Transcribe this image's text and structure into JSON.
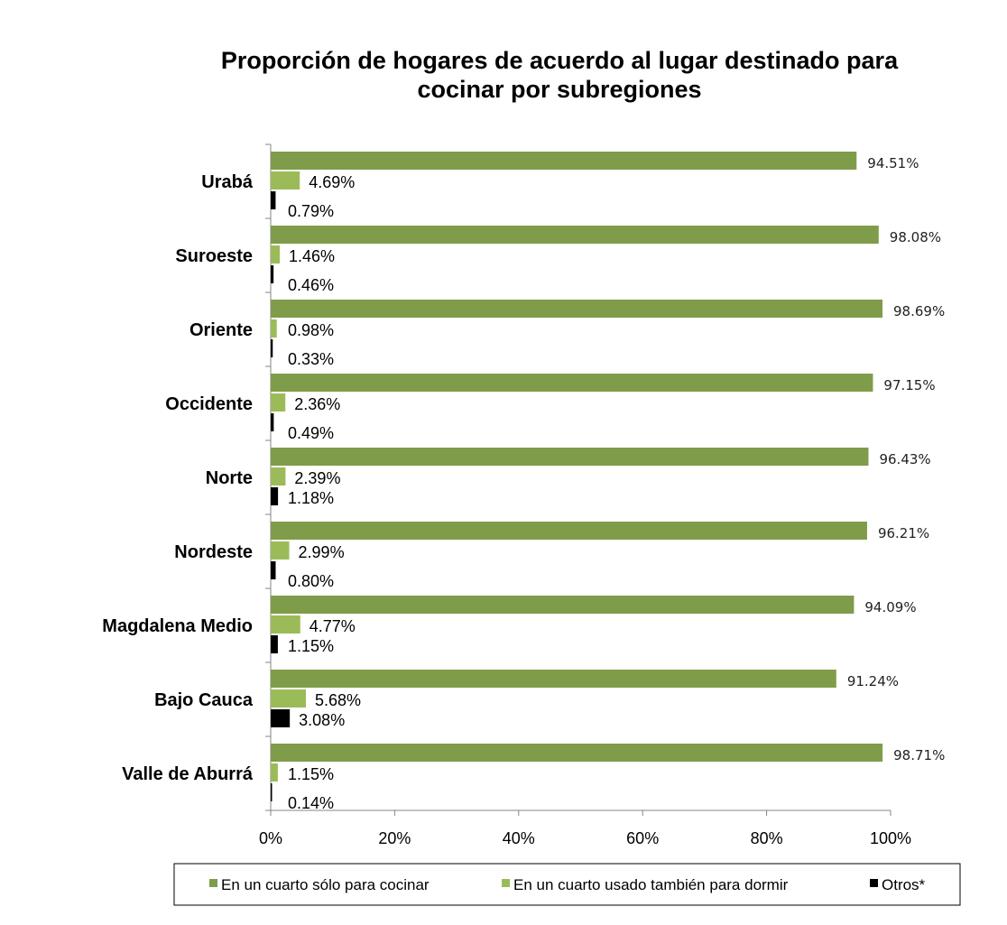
{
  "chart_data": {
    "type": "bar",
    "orientation": "horizontal",
    "title": "Proporción de hogares de acuerdo al lugar destinado para cocinar por subregiones",
    "title_lines": [
      "Proporción de hogares de acuerdo al lugar destinado para",
      "cocinar por subregiones"
    ],
    "categories": [
      "Urabá",
      "Suroeste",
      "Oriente",
      "Occidente",
      "Norte",
      "Nordeste",
      "Magdalena Medio",
      "Bajo Cauca",
      "Valle de Aburrá"
    ],
    "series": [
      {
        "name": "En un cuarto sólo para cocinar",
        "color": "#7f9c4a",
        "values": [
          94.51,
          98.08,
          98.69,
          97.15,
          96.43,
          96.21,
          94.09,
          91.24,
          98.71
        ],
        "labels": [
          "94.51%",
          "98.08%",
          "98.69%",
          "97.15%",
          "96.43%",
          "96.21%",
          "94.09%",
          "91.24%",
          "98.71%"
        ]
      },
      {
        "name": "En un cuarto usado también para dormir",
        "color": "#9bbb59",
        "values": [
          4.69,
          1.46,
          0.98,
          2.36,
          2.39,
          2.99,
          4.77,
          5.68,
          1.15
        ],
        "labels": [
          "4.69%",
          "1.46%",
          "0.98%",
          "2.36%",
          "2.39%",
          "2.99%",
          "4.77%",
          "5.68%",
          "1.15%"
        ]
      },
      {
        "name": "Otros*",
        "color": "#000000",
        "values": [
          0.79,
          0.46,
          0.33,
          0.49,
          1.18,
          0.8,
          1.15,
          3.08,
          0.14
        ],
        "labels": [
          "0.79%",
          "0.46%",
          "0.33%",
          "0.49%",
          "1.18%",
          "0.80%",
          "1.15%",
          "3.08%",
          "0.14%"
        ]
      }
    ],
    "xlim": [
      0,
      100
    ],
    "x_ticks": [
      "0%",
      "20%",
      "40%",
      "60%",
      "80%",
      "100%"
    ],
    "grid": false,
    "legend_position": "bottom"
  }
}
